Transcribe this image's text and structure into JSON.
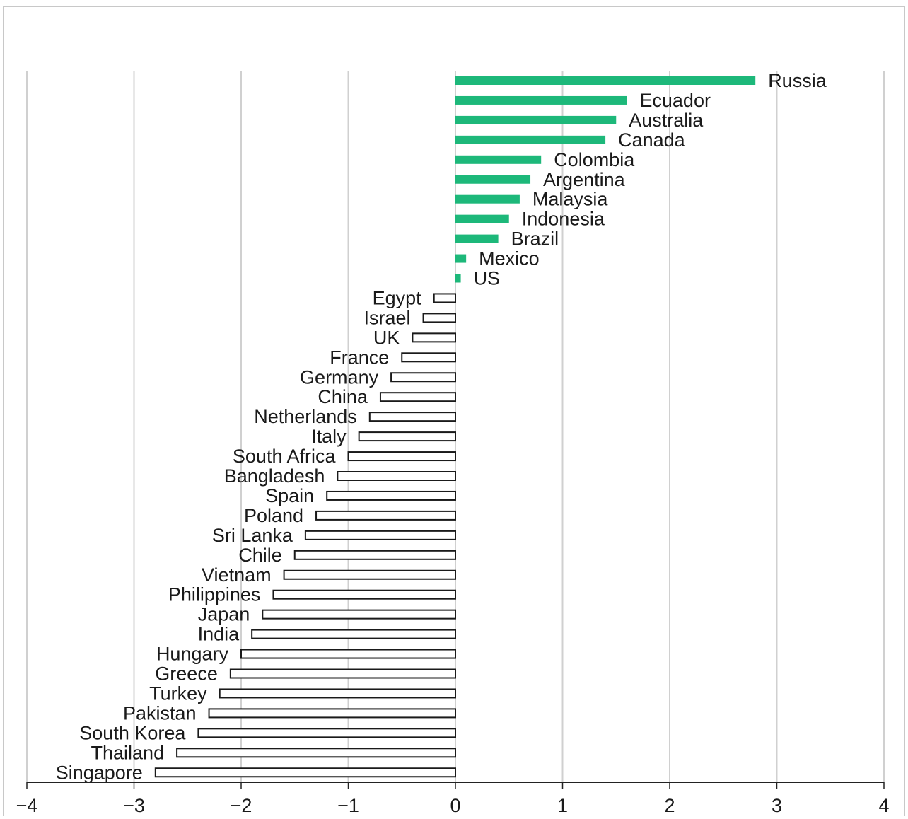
{
  "chart_data": {
    "type": "bar",
    "orientation": "horizontal",
    "title": "",
    "xlabel": "",
    "ylabel": "",
    "xlim": [
      -4,
      4
    ],
    "xticks": [
      -4,
      -3,
      -2,
      -1,
      0,
      1,
      2,
      3,
      4
    ],
    "xtick_labels": [
      "−4",
      "−3",
      "−2",
      "−1",
      "0",
      "1",
      "2",
      "3",
      "4"
    ],
    "grid": "vertical",
    "legend": "none",
    "colors": {
      "positive_fill": "#1db87a",
      "negative_fill": "#ffffff",
      "negative_stroke": "#1a1a1a"
    },
    "categories": [
      "Russia",
      "Ecuador",
      "Australia",
      "Canada",
      "Colombia",
      "Argentina",
      "Malaysia",
      "Indonesia",
      "Brazil",
      "Mexico",
      "US",
      "Egypt",
      "Israel",
      "UK",
      "France",
      "Germany",
      "China",
      "Netherlands",
      "Italy",
      "South Africa",
      "Bangladesh",
      "Spain",
      "Poland",
      "Sri Lanka",
      "Chile",
      "Vietnam",
      "Philippines",
      "Japan",
      "India",
      "Hungary",
      "Greece",
      "Turkey",
      "Pakistan",
      "South Korea",
      "Thailand",
      "Singapore"
    ],
    "values": [
      2.8,
      1.6,
      1.5,
      1.4,
      0.8,
      0.7,
      0.6,
      0.5,
      0.4,
      0.1,
      0.05,
      -0.2,
      -0.3,
      -0.4,
      -0.5,
      -0.6,
      -0.7,
      -0.8,
      -0.9,
      -1.0,
      -1.1,
      -1.2,
      -1.3,
      -1.4,
      -1.5,
      -1.6,
      -1.7,
      -1.8,
      -1.9,
      -2.0,
      -2.1,
      -2.2,
      -2.3,
      -2.4,
      -2.6,
      -2.8
    ]
  }
}
